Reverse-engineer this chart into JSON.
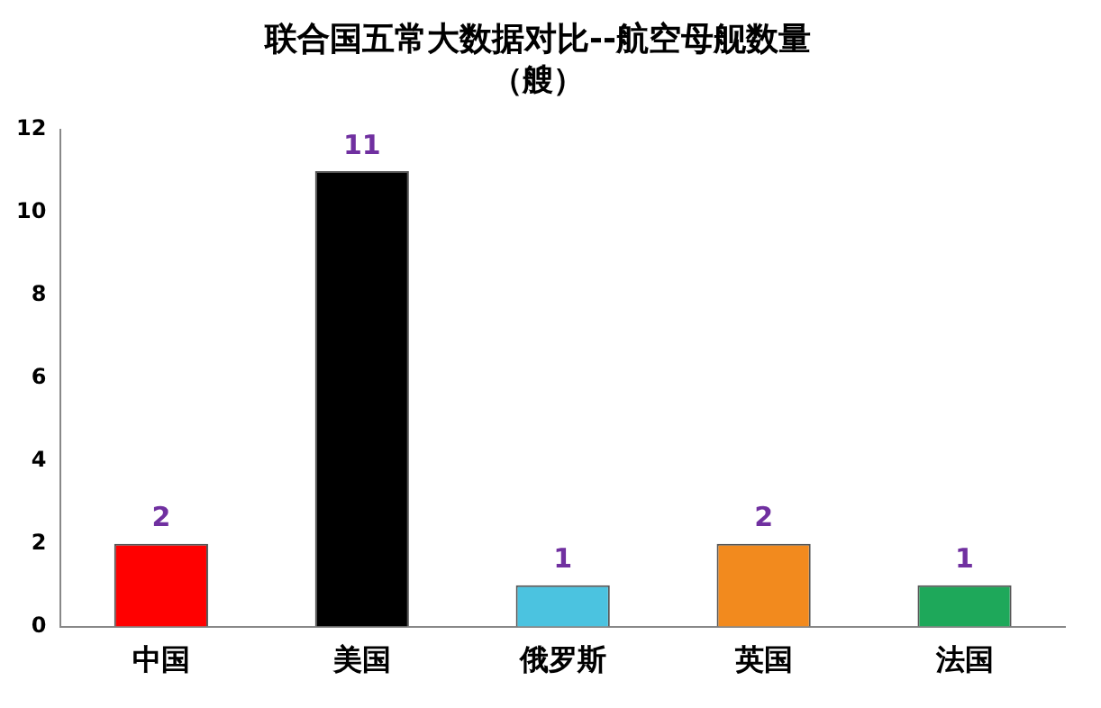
{
  "chart_data": {
    "type": "bar",
    "title": "联合国五常大数据对比--航空母舰数量",
    "subtitle": "（艘）",
    "categories": [
      "中国",
      "美国",
      "俄罗斯",
      "英国",
      "法国"
    ],
    "values": [
      2,
      11,
      1,
      2,
      1
    ],
    "colors": [
      "#ff0000",
      "#000000",
      "#4bc3e0",
      "#f28a1e",
      "#1ea85a"
    ],
    "ylim": [
      0,
      12
    ],
    "yticks": [
      0,
      2,
      4,
      6,
      8,
      10,
      12
    ],
    "grid": false,
    "data_labels": true,
    "legend": false
  }
}
